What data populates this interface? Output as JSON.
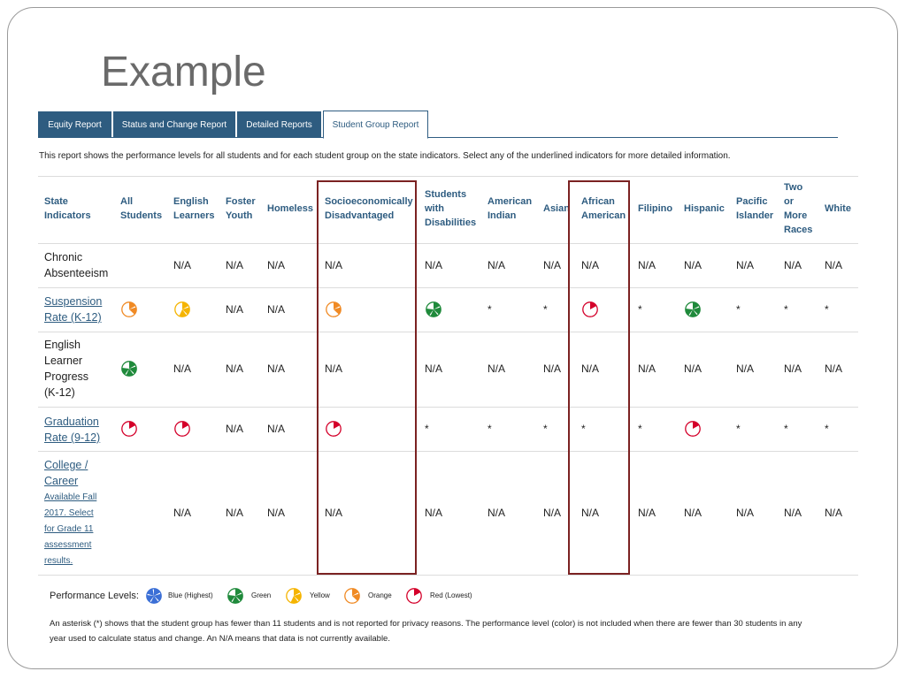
{
  "slide": {
    "title": "Example"
  },
  "tabs": [
    {
      "label": "Equity Report",
      "active": false
    },
    {
      "label": "Status and Change Report",
      "active": false
    },
    {
      "label": "Detailed Reports",
      "active": false
    },
    {
      "label": "Student Group Report",
      "active": true
    }
  ],
  "intro": "This report shows the performance levels for all students and for each student group on the state indicators. Select any of the underlined indicators for more detailed information.",
  "table": {
    "headers": {
      "state_indicators": [
        "State",
        "Indicators"
      ],
      "all_students": [
        "All",
        "Students"
      ],
      "english_learners": [
        "English",
        "Learners"
      ],
      "foster_youth": [
        "Foster",
        "Youth"
      ],
      "homeless": [
        "Homeless"
      ],
      "socioeconomically": [
        "Socioeconomically",
        "Disadvantaged"
      ],
      "students_disabilities": [
        "Students",
        "with",
        "Disabilities"
      ],
      "american_indian": [
        "American",
        "Indian"
      ],
      "asian": [
        "Asian"
      ],
      "african_american": [
        "African",
        "American"
      ],
      "filipino": [
        "Filipino"
      ],
      "hispanic": [
        "Hispanic"
      ],
      "pacific_islander": [
        "Pacific",
        "Islander"
      ],
      "two_or_more": [
        "Two",
        "or",
        "More",
        "Races"
      ],
      "white": [
        "White"
      ]
    },
    "rows": {
      "chronic": {
        "label": [
          "Chronic",
          "Absenteeism"
        ],
        "values": [
          "",
          "N/A",
          "N/A",
          "N/A",
          "N/A",
          "N/A",
          "N/A",
          "N/A",
          "N/A",
          "N/A",
          "N/A",
          "N/A",
          "N/A",
          "N/A"
        ]
      },
      "suspension": {
        "label": [
          "Suspension",
          "Rate (K-12)"
        ],
        "values": [
          "orange",
          "yellow",
          "N/A",
          "N/A",
          "orange",
          "green",
          "*",
          "*",
          "red",
          "*",
          "green",
          "*",
          "*",
          "*"
        ]
      },
      "el_progress": {
        "label": [
          "English",
          "Learner",
          "Progress",
          "(K-12)"
        ],
        "values": [
          "green",
          "N/A",
          "N/A",
          "N/A",
          "N/A",
          "N/A",
          "N/A",
          "N/A",
          "N/A",
          "N/A",
          "N/A",
          "N/A",
          "N/A",
          "N/A"
        ]
      },
      "graduation": {
        "label": [
          "Graduation",
          "Rate (9-12)"
        ],
        "values": [
          "red",
          "red",
          "N/A",
          "N/A",
          "red",
          "*",
          "*",
          "*",
          "*",
          "*",
          "red",
          "*",
          "*",
          "*"
        ]
      },
      "college": {
        "label": [
          "College /",
          "Career"
        ],
        "sublabel": [
          "Available Fall",
          "2017. Select",
          "for Grade 11",
          "assessment",
          "results."
        ],
        "values": [
          "",
          "N/A",
          "N/A",
          "N/A",
          "N/A",
          "N/A",
          "N/A",
          "N/A",
          "N/A",
          "N/A",
          "N/A",
          "N/A",
          "N/A",
          "N/A"
        ]
      }
    }
  },
  "legend": {
    "title": "Performance Levels:",
    "items": [
      {
        "label": "Blue (Highest)",
        "level": "blue"
      },
      {
        "label": "Green",
        "level": "green"
      },
      {
        "label": "Yellow",
        "level": "yellow"
      },
      {
        "label": "Orange",
        "level": "orange"
      },
      {
        "label": "Red (Lowest)",
        "level": "red"
      }
    ]
  },
  "note": "An asterisk (*) shows that the student group has fewer than 11 students and is not reported for privacy reasons. The performance level (color) is not included when there are fewer than 30 students in any year used to calculate status and change. An N/A means that data is not currently available.",
  "colors": {
    "blue": "#3b6fd6",
    "green": "#1f8a3b",
    "yellow": "#f5b400",
    "orange": "#f08a24",
    "red": "#d4002a",
    "tab": "#2e5c80",
    "highlight": "#7b2222"
  }
}
